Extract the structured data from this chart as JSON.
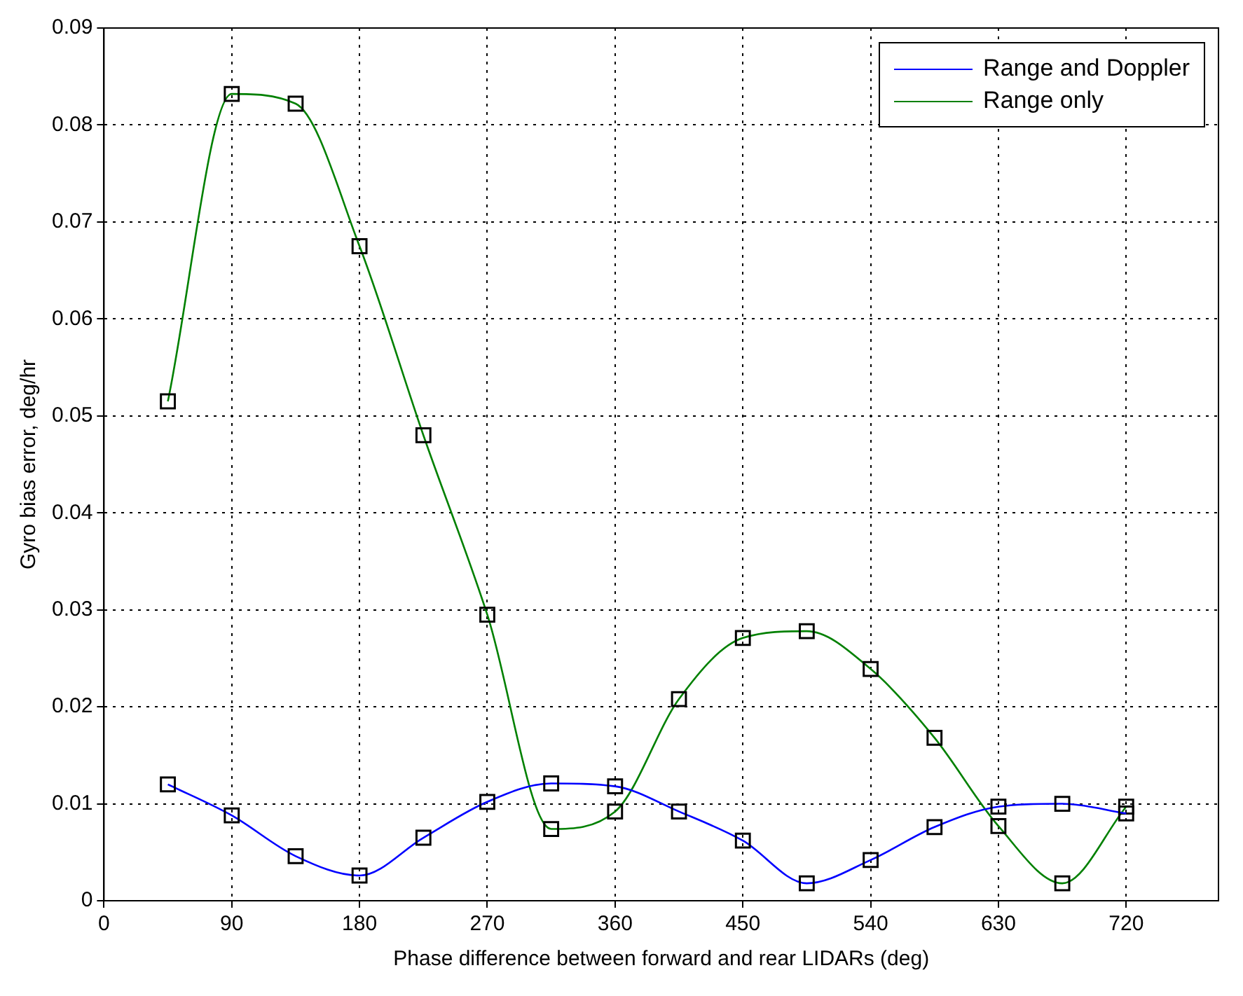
{
  "chart_data": {
    "type": "line",
    "xlabel": "Phase difference between forward and rear LIDARs (deg)",
    "ylabel": "Gyro bias error, deg/hr",
    "x": [
      45,
      90,
      135,
      180,
      225,
      270,
      315,
      360,
      405,
      450,
      495,
      540,
      585,
      630,
      675,
      720
    ],
    "series": [
      {
        "name": "Range and Doppler",
        "color": "#0000ff",
        "values": [
          0.012,
          0.0088,
          0.0046,
          0.0026,
          0.0065,
          0.0102,
          0.0121,
          0.0118,
          0.0092,
          0.0062,
          0.0018,
          0.0042,
          0.0076,
          0.0097,
          0.01,
          0.009
        ]
      },
      {
        "name": "Range only",
        "color": "#008000",
        "values": [
          0.0515,
          0.0832,
          0.0822,
          0.0675,
          0.048,
          0.0295,
          0.0074,
          0.0092,
          0.0208,
          0.0271,
          0.0278,
          0.0239,
          0.0168,
          0.0077,
          0.0018,
          0.0097
        ]
      }
    ],
    "xlim": [
      0,
      785
    ],
    "xticks": [
      0,
      90,
      180,
      270,
      360,
      450,
      540,
      630,
      720
    ],
    "ylim": [
      0,
      0.09
    ],
    "yticks": [
      0,
      0.01,
      0.02,
      0.03,
      0.04,
      0.05,
      0.06,
      0.07,
      0.08,
      0.09
    ],
    "grid": true,
    "legend": "top right",
    "marker": "square",
    "line_style": "solid"
  }
}
